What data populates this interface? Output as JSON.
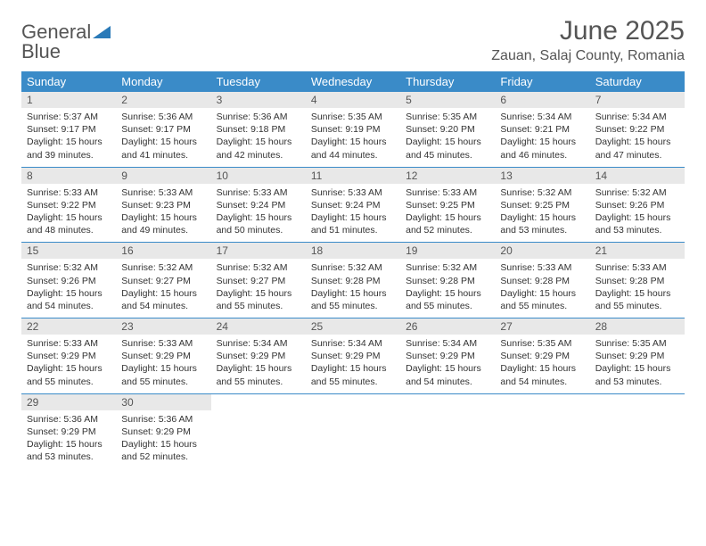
{
  "logo": {
    "text1": "General",
    "text2": "Blue"
  },
  "title": "June 2025",
  "location": "Zauan, Salaj County, Romania",
  "colors": {
    "header_bg": "#3a8bc8",
    "header_text": "#ffffff",
    "daynum_bg": "#e8e8e8",
    "border": "#3a8bc8",
    "logo_gray": "#555555",
    "logo_blue": "#2a7ab8"
  },
  "weekdays": [
    "Sunday",
    "Monday",
    "Tuesday",
    "Wednesday",
    "Thursday",
    "Friday",
    "Saturday"
  ],
  "weeks": [
    [
      {
        "n": "1",
        "sr": "5:37 AM",
        "ss": "9:17 PM",
        "dl": "15 hours and 39 minutes."
      },
      {
        "n": "2",
        "sr": "5:36 AM",
        "ss": "9:17 PM",
        "dl": "15 hours and 41 minutes."
      },
      {
        "n": "3",
        "sr": "5:36 AM",
        "ss": "9:18 PM",
        "dl": "15 hours and 42 minutes."
      },
      {
        "n": "4",
        "sr": "5:35 AM",
        "ss": "9:19 PM",
        "dl": "15 hours and 44 minutes."
      },
      {
        "n": "5",
        "sr": "5:35 AM",
        "ss": "9:20 PM",
        "dl": "15 hours and 45 minutes."
      },
      {
        "n": "6",
        "sr": "5:34 AM",
        "ss": "9:21 PM",
        "dl": "15 hours and 46 minutes."
      },
      {
        "n": "7",
        "sr": "5:34 AM",
        "ss": "9:22 PM",
        "dl": "15 hours and 47 minutes."
      }
    ],
    [
      {
        "n": "8",
        "sr": "5:33 AM",
        "ss": "9:22 PM",
        "dl": "15 hours and 48 minutes."
      },
      {
        "n": "9",
        "sr": "5:33 AM",
        "ss": "9:23 PM",
        "dl": "15 hours and 49 minutes."
      },
      {
        "n": "10",
        "sr": "5:33 AM",
        "ss": "9:24 PM",
        "dl": "15 hours and 50 minutes."
      },
      {
        "n": "11",
        "sr": "5:33 AM",
        "ss": "9:24 PM",
        "dl": "15 hours and 51 minutes."
      },
      {
        "n": "12",
        "sr": "5:33 AM",
        "ss": "9:25 PM",
        "dl": "15 hours and 52 minutes."
      },
      {
        "n": "13",
        "sr": "5:32 AM",
        "ss": "9:25 PM",
        "dl": "15 hours and 53 minutes."
      },
      {
        "n": "14",
        "sr": "5:32 AM",
        "ss": "9:26 PM",
        "dl": "15 hours and 53 minutes."
      }
    ],
    [
      {
        "n": "15",
        "sr": "5:32 AM",
        "ss": "9:26 PM",
        "dl": "15 hours and 54 minutes."
      },
      {
        "n": "16",
        "sr": "5:32 AM",
        "ss": "9:27 PM",
        "dl": "15 hours and 54 minutes."
      },
      {
        "n": "17",
        "sr": "5:32 AM",
        "ss": "9:27 PM",
        "dl": "15 hours and 55 minutes."
      },
      {
        "n": "18",
        "sr": "5:32 AM",
        "ss": "9:28 PM",
        "dl": "15 hours and 55 minutes."
      },
      {
        "n": "19",
        "sr": "5:32 AM",
        "ss": "9:28 PM",
        "dl": "15 hours and 55 minutes."
      },
      {
        "n": "20",
        "sr": "5:33 AM",
        "ss": "9:28 PM",
        "dl": "15 hours and 55 minutes."
      },
      {
        "n": "21",
        "sr": "5:33 AM",
        "ss": "9:28 PM",
        "dl": "15 hours and 55 minutes."
      }
    ],
    [
      {
        "n": "22",
        "sr": "5:33 AM",
        "ss": "9:29 PM",
        "dl": "15 hours and 55 minutes."
      },
      {
        "n": "23",
        "sr": "5:33 AM",
        "ss": "9:29 PM",
        "dl": "15 hours and 55 minutes."
      },
      {
        "n": "24",
        "sr": "5:34 AM",
        "ss": "9:29 PM",
        "dl": "15 hours and 55 minutes."
      },
      {
        "n": "25",
        "sr": "5:34 AM",
        "ss": "9:29 PM",
        "dl": "15 hours and 55 minutes."
      },
      {
        "n": "26",
        "sr": "5:34 AM",
        "ss": "9:29 PM",
        "dl": "15 hours and 54 minutes."
      },
      {
        "n": "27",
        "sr": "5:35 AM",
        "ss": "9:29 PM",
        "dl": "15 hours and 54 minutes."
      },
      {
        "n": "28",
        "sr": "5:35 AM",
        "ss": "9:29 PM",
        "dl": "15 hours and 53 minutes."
      }
    ],
    [
      {
        "n": "29",
        "sr": "5:36 AM",
        "ss": "9:29 PM",
        "dl": "15 hours and 53 minutes."
      },
      {
        "n": "30",
        "sr": "5:36 AM",
        "ss": "9:29 PM",
        "dl": "15 hours and 52 minutes."
      },
      null,
      null,
      null,
      null,
      null
    ]
  ],
  "labels": {
    "sunrise": "Sunrise: ",
    "sunset": "Sunset: ",
    "daylight": "Daylight: "
  }
}
